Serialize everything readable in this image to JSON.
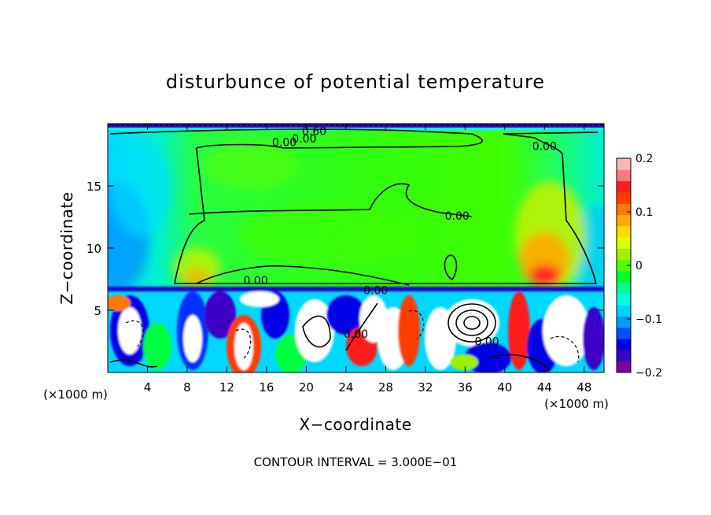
{
  "chart_data": {
    "type": "heatmap",
    "title": "disturbunce of potential temperature",
    "xlabel": "X−coordinate",
    "ylabel": "Z−coordinate",
    "x_unit_left": "(×1000 m)",
    "x_unit_right": "(×1000 m)",
    "xlim": [
      0,
      50
    ],
    "ylim": [
      0,
      20
    ],
    "x_ticks": [
      4,
      8,
      12,
      16,
      20,
      24,
      28,
      32,
      36,
      40,
      44,
      48
    ],
    "y_ticks": [
      5,
      10,
      15
    ],
    "colorbar": {
      "range": [
        -0.2,
        0.2
      ],
      "ticks": [
        {
          "value": 0.2,
          "label": "0.2"
        },
        {
          "value": 0.1,
          "label": "0.1"
        },
        {
          "value": 0.0,
          "label": "0"
        },
        {
          "value": -0.1,
          "label": "−0.1"
        },
        {
          "value": -0.2,
          "label": "−0.2"
        }
      ],
      "colors": [
        "#7f00a0",
        "#3c00c8",
        "#0000e6",
        "#0050ff",
        "#009bff",
        "#00d2ff",
        "#00ffdc",
        "#00ff8c",
        "#00ff28",
        "#50ff00",
        "#a0f000",
        "#dcff00",
        "#ffdc00",
        "#ffaa00",
        "#ff7800",
        "#ff3c00",
        "#ff1e1e",
        "#ff7a7a",
        "#ffb4b4"
      ]
    },
    "contour_labels": [
      {
        "x": 20.8,
        "z": 19.4,
        "text": "0.60"
      },
      {
        "x": 17.8,
        "z": 18.5,
        "text": "0.00"
      },
      {
        "x": 19.8,
        "z": 18.8,
        "text": "0.00"
      },
      {
        "x": 44.0,
        "z": 18.2,
        "text": "0.00"
      },
      {
        "x": 35.2,
        "z": 12.6,
        "text": "0.00"
      },
      {
        "x": 14.9,
        "z": 7.4,
        "text": "0.00"
      },
      {
        "x": 27.0,
        "z": 6.6,
        "text": "0.00"
      },
      {
        "x": 25.0,
        "z": 3.1,
        "text": "0.00"
      },
      {
        "x": 38.2,
        "z": 2.5,
        "text": "0.00"
      }
    ],
    "footer": "CONTOUR INTERVAL = 3.000E−01"
  }
}
